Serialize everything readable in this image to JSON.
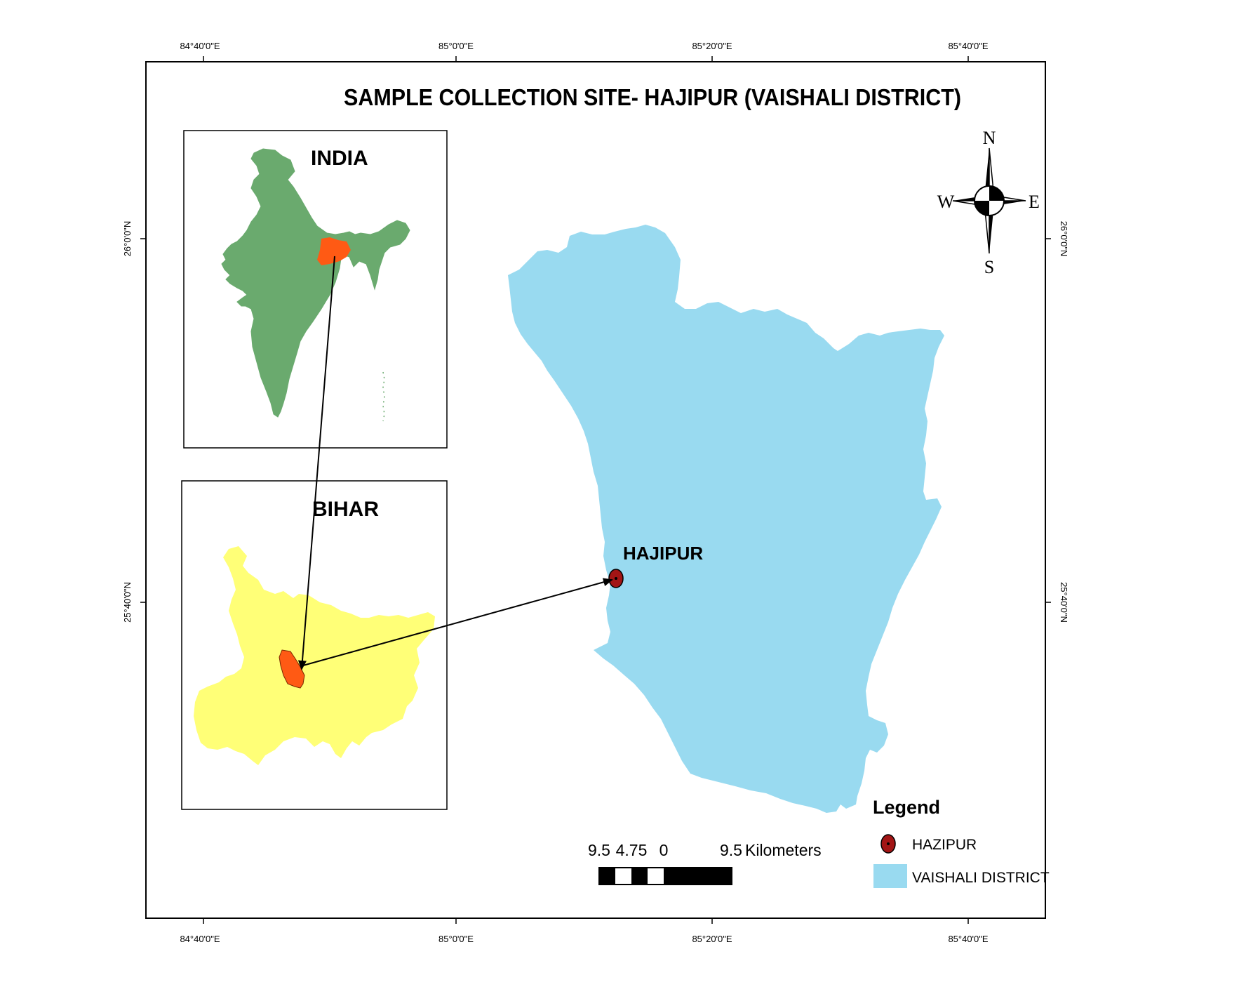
{
  "title": "SAMPLE COLLECTION SITE- HAJIPUR (VAISHALI DISTRICT)",
  "grid_labels": {
    "top": [
      "84°40'0\"E",
      "85°0'0\"E",
      "85°20'0\"E",
      "85°40'0\"E"
    ],
    "bottom": [
      "84°40'0\"E",
      "85°0'0\"E",
      "85°20'0\"E",
      "85°40'0\"E"
    ],
    "left": [
      "26°0'0\"N",
      "25°40'0\"N"
    ],
    "right": [
      "26°0'0\"N",
      "25°40'0\"N"
    ]
  },
  "insets": {
    "india": {
      "label": "INDIA",
      "color": "#6aaa6e",
      "highlight_color": "#ff5a14"
    },
    "bihar": {
      "label": "BIHAR",
      "color": "#ffff77",
      "highlight_color": "#ff5a14"
    }
  },
  "district": {
    "color": "#99daf0"
  },
  "site": {
    "label": "HAJIPUR",
    "color": "#a21515"
  },
  "compass": {
    "n": "N",
    "s": "S",
    "e": "E",
    "w": "W"
  },
  "scale_bar": {
    "ticks": [
      "9.5",
      "4.75",
      "0",
      "9.5"
    ],
    "unit": "Kilometers"
  },
  "legend": {
    "title": "Legend",
    "items": [
      {
        "label": "HAZIPUR",
        "symbol": "point",
        "color": "#a21515"
      },
      {
        "label": "VAISHALI DISTRICT",
        "symbol": "polygon",
        "color": "#99daf0"
      }
    ]
  }
}
